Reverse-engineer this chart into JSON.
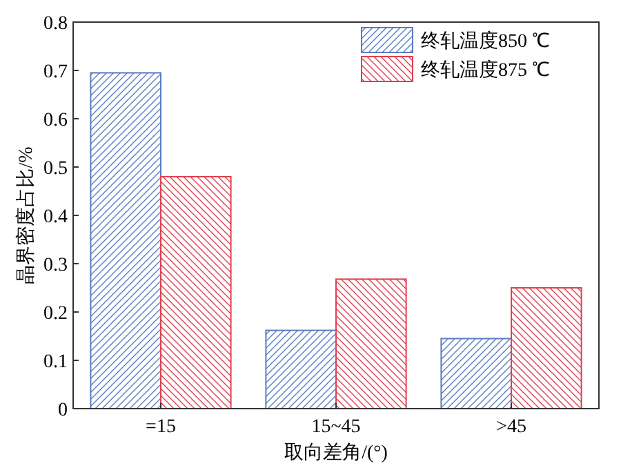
{
  "chart_data": {
    "type": "bar",
    "xlabel": "取向差角/(°)",
    "ylabel": "晶界密度占比/%",
    "categories": [
      "=15",
      "15~45",
      ">45"
    ],
    "series": [
      {
        "name": "终轧温度850 ℃",
        "color": "#5a7cc0",
        "values": [
          0.695,
          0.162,
          0.145
        ]
      },
      {
        "name": "终轧温度875 ℃",
        "color": "#e0404f",
        "values": [
          0.48,
          0.268,
          0.25
        ]
      }
    ],
    "ylim": [
      0,
      0.8
    ],
    "yticks": [
      0,
      0.1,
      0.2,
      0.3,
      0.4,
      0.5,
      0.6,
      0.7,
      0.8
    ],
    "legend": "top right",
    "grid": false
  }
}
